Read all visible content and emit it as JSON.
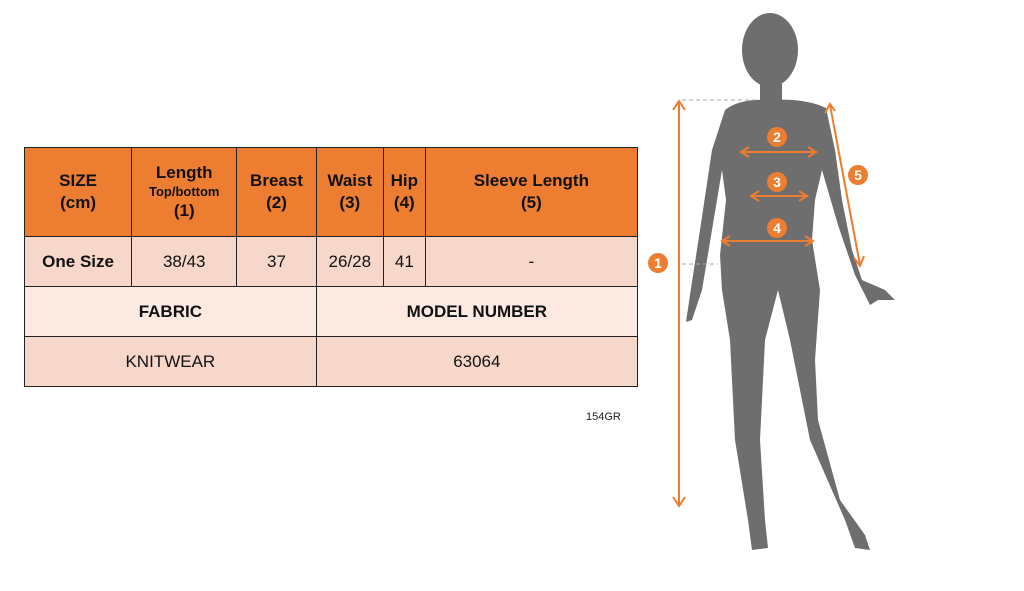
{
  "table": {
    "headers": [
      {
        "main": "SIZE",
        "sub": "",
        "num": "(cm)"
      },
      {
        "main": "Length",
        "sub": "Top/bottom",
        "num": "(1)"
      },
      {
        "main": "Breast",
        "sub": "",
        "num": "(2)"
      },
      {
        "main": "Waist",
        "sub": "",
        "num": "(3)"
      },
      {
        "main": "Hip",
        "sub": "",
        "num": "(4)"
      },
      {
        "main": "Sleeve Length",
        "sub": "",
        "num": "(5)"
      }
    ],
    "row": [
      "One Size",
      "38/43",
      "37",
      "26/28",
      "41",
      "-"
    ],
    "fabric_label": "FABRIC",
    "model_label": "MODEL NUMBER",
    "fabric_value": "KNITWEAR",
    "model_value": "63064"
  },
  "code": "154GR",
  "figure": {
    "markers": [
      "1",
      "2",
      "3",
      "4",
      "5"
    ],
    "accent_color": "#ED7D31",
    "silhouette_color": "#6E6E6E"
  }
}
